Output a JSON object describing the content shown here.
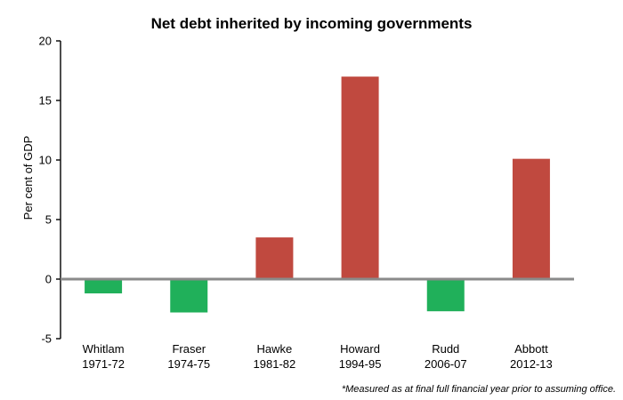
{
  "chart_data": {
    "type": "bar",
    "title": "Net debt inherited by incoming governments",
    "ylabel": "Per cent of GDP",
    "xlabel": "",
    "ylim": [
      -5,
      20
    ],
    "yticks": [
      -5,
      0,
      5,
      10,
      15,
      20
    ],
    "categories": [
      {
        "name": "Whitlam",
        "period": "1971-72"
      },
      {
        "name": "Fraser",
        "period": "1974-75"
      },
      {
        "name": "Hawke",
        "period": "1981-82"
      },
      {
        "name": "Howard",
        "period": "1994-95"
      },
      {
        "name": "Rudd",
        "period": "2006-07"
      },
      {
        "name": "Abbott",
        "period": "2012-13"
      }
    ],
    "values": [
      -1.2,
      -2.8,
      3.5,
      17.0,
      -2.7,
      10.1
    ],
    "colors": {
      "positive": "#c0493f",
      "negative": "#20b05a",
      "axis": "#111111",
      "zero_line": "#8a8a8a"
    },
    "footnote": "*Measured as at final full financial year prior to assuming office.",
    "grid": false,
    "legend": "none"
  }
}
